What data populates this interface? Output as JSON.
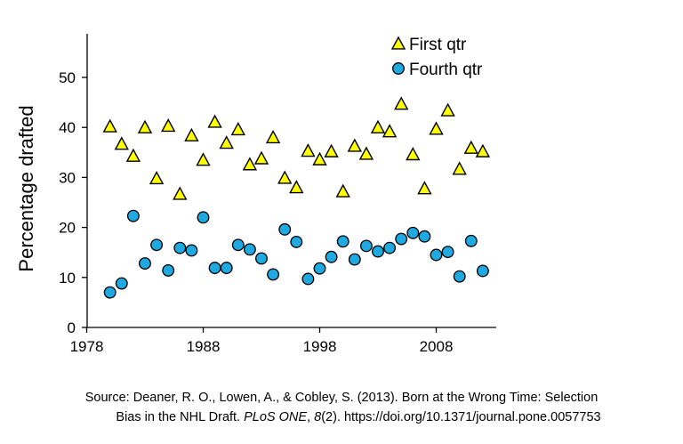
{
  "chart_data": {
    "type": "scatter",
    "title": "",
    "xlabel": "",
    "ylabel": "Percentage drafted",
    "xlim": [
      1978,
      2014
    ],
    "ylim": [
      0,
      57
    ],
    "xticks": [
      1978,
      1988,
      1998,
      2008
    ],
    "yticks": [
      0,
      10,
      20,
      30,
      40,
      50
    ],
    "grid": false,
    "legend_position": "top-right",
    "series": [
      {
        "name": "First qtr",
        "marker": "triangle",
        "color": "#ffff00",
        "points": [
          [
            1980,
            40.2
          ],
          [
            1981,
            36.7
          ],
          [
            1982,
            34.3
          ],
          [
            1983,
            40.0
          ],
          [
            1984,
            29.8
          ],
          [
            1985,
            40.3
          ],
          [
            1986,
            26.7
          ],
          [
            1987,
            38.4
          ],
          [
            1988,
            33.5
          ],
          [
            1989,
            41.1
          ],
          [
            1990,
            36.9
          ],
          [
            1991,
            39.6
          ],
          [
            1992,
            32.6
          ],
          [
            1993,
            33.8
          ],
          [
            1994,
            38.0
          ],
          [
            1995,
            29.9
          ],
          [
            1996,
            28.0
          ],
          [
            1997,
            35.3
          ],
          [
            1998,
            33.6
          ],
          [
            1999,
            35.2
          ],
          [
            2000,
            27.2
          ],
          [
            2001,
            36.3
          ],
          [
            2002,
            34.7
          ],
          [
            2003,
            40.0
          ],
          [
            2004,
            39.2
          ],
          [
            2005,
            44.7
          ],
          [
            2006,
            34.6
          ],
          [
            2007,
            27.8
          ],
          [
            2008,
            39.7
          ],
          [
            2009,
            43.4
          ],
          [
            2010,
            31.7
          ],
          [
            2011,
            35.9
          ],
          [
            2012,
            35.2
          ]
        ]
      },
      {
        "name": "Fourth qtr",
        "marker": "circle",
        "color": "#1ea9e1",
        "points": [
          [
            1980,
            7.0
          ],
          [
            1981,
            8.8
          ],
          [
            1982,
            22.3
          ],
          [
            1983,
            12.8
          ],
          [
            1984,
            16.5
          ],
          [
            1985,
            11.4
          ],
          [
            1986,
            15.9
          ],
          [
            1987,
            15.4
          ],
          [
            1988,
            22.0
          ],
          [
            1989,
            11.9
          ],
          [
            1990,
            11.9
          ],
          [
            1991,
            16.5
          ],
          [
            1992,
            15.6
          ],
          [
            1993,
            13.8
          ],
          [
            1994,
            10.6
          ],
          [
            1995,
            19.6
          ],
          [
            1996,
            17.1
          ],
          [
            1997,
            9.7
          ],
          [
            1998,
            11.8
          ],
          [
            1999,
            14.1
          ],
          [
            2000,
            17.2
          ],
          [
            2001,
            13.6
          ],
          [
            2002,
            16.3
          ],
          [
            2003,
            15.2
          ],
          [
            2004,
            15.9
          ],
          [
            2005,
            17.7
          ],
          [
            2006,
            18.9
          ],
          [
            2007,
            18.2
          ],
          [
            2008,
            14.5
          ],
          [
            2009,
            15.1
          ],
          [
            2010,
            10.2
          ],
          [
            2011,
            17.3
          ],
          [
            2012,
            11.3
          ]
        ]
      }
    ]
  },
  "source": {
    "line1": "Source: Deaner, R. O., Lowen, A., & Cobley, S. (2013). Born at the Wrong Time: Selection",
    "line2_pre": "Bias in the NHL Draft. ",
    "line2_journal": "PLoS ONE",
    "line2_mid1": ", ",
    "line2_volume": "8",
    "line2_post": "(2). https://doi.org/10.1371/journal.pone.0057753"
  }
}
